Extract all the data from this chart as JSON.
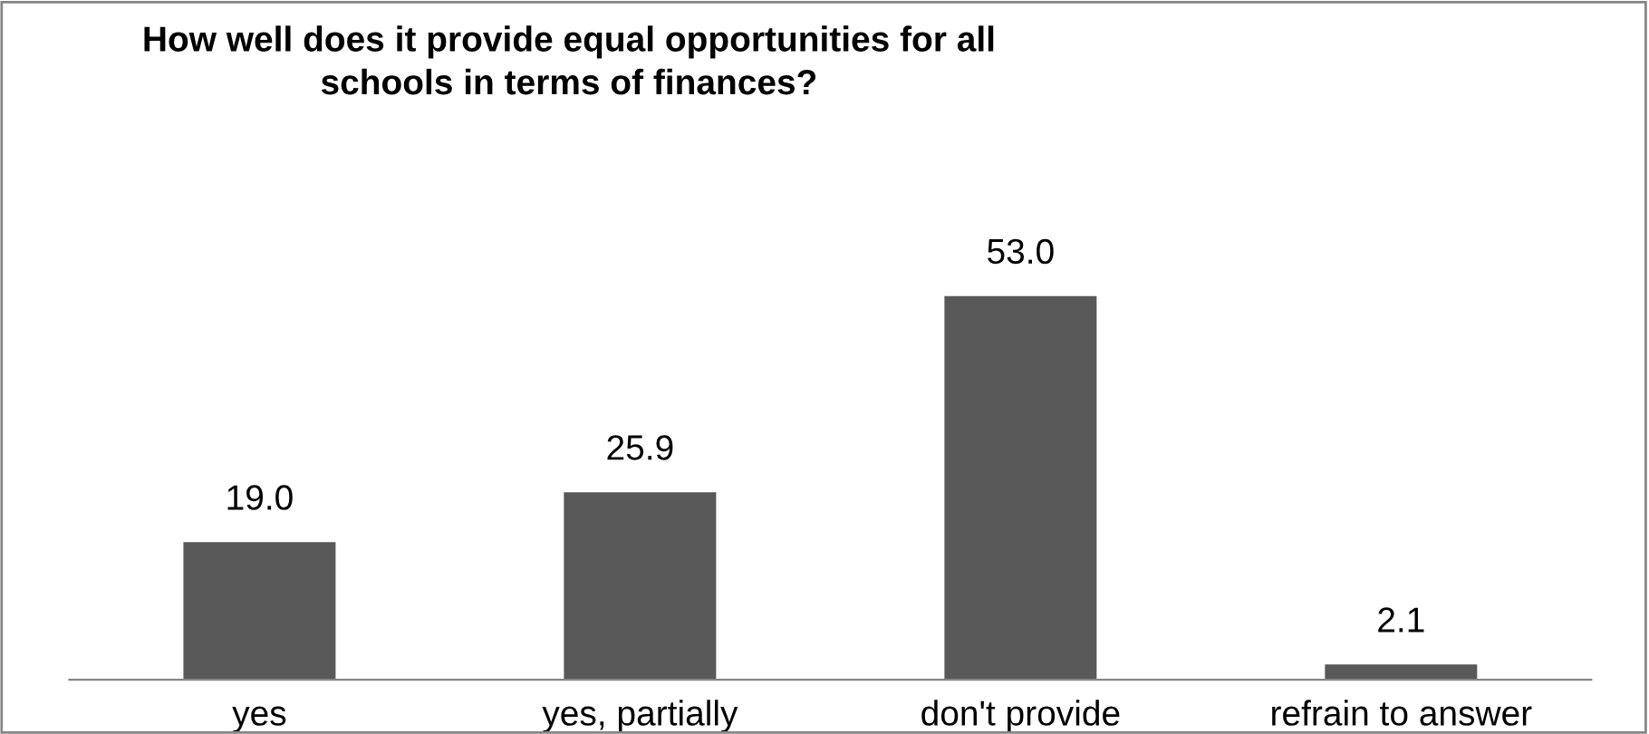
{
  "chart_data": {
    "type": "bar",
    "title": "How well does it provide equal opportunities for all\nschools in terms of finances?",
    "categories": [
      "yes",
      "yes, partially",
      "don't provide",
      "refrain to answer"
    ],
    "values": [
      19.0,
      25.9,
      53.0,
      2.1
    ],
    "value_labels": [
      "19.0",
      "25.9",
      "53.0",
      "2.1"
    ],
    "color": "#595959",
    "grid": false,
    "legend": false
  }
}
